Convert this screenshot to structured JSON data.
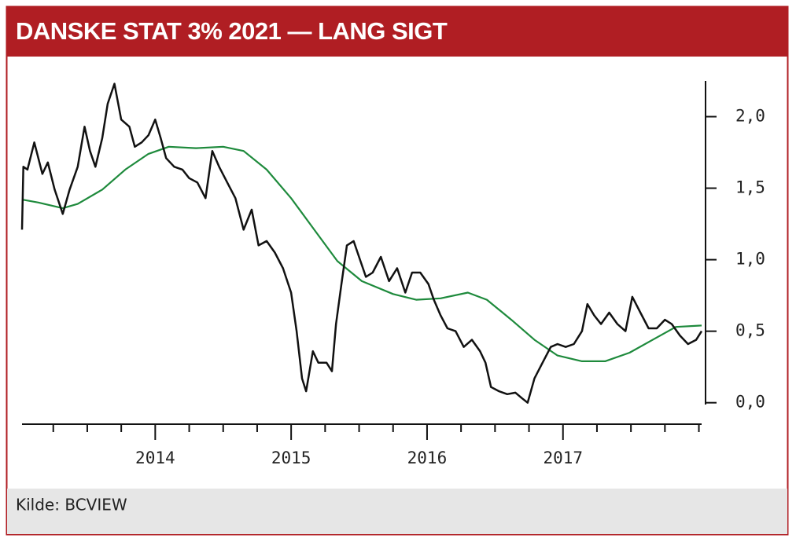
{
  "chart_data": {
    "type": "line",
    "title": "DANSKE STAT 3% 2021 — LANG SIGT",
    "source": "Kilde: BCVIEW",
    "xlim": [
      2013.02,
      2018.02
    ],
    "xticks": [
      2014,
      2015,
      2016,
      2017
    ],
    "xticks_minor": [
      2013.25,
      2013.5,
      2013.75,
      2014.25,
      2014.5,
      2014.75,
      2015.25,
      2015.5,
      2015.75,
      2016.25,
      2016.5,
      2016.75,
      2017.25,
      2017.5,
      2017.75,
      2018.0
    ],
    "ylim": [
      -0.15,
      2.25
    ],
    "yticks": [
      {
        "value": 0,
        "label": "0,0"
      },
      {
        "value": 0.5,
        "label": "0,5"
      },
      {
        "value": 1,
        "label": "1,0"
      },
      {
        "value": 1.5,
        "label": "1,5"
      },
      {
        "value": 2,
        "label": "2,0"
      }
    ],
    "series": [
      {
        "color": "#111111",
        "x": [
          2013.02,
          2013.03,
          2013.06,
          2013.11,
          2013.17,
          2013.21,
          2013.26,
          2013.32,
          2013.37,
          2013.43,
          2013.48,
          2013.52,
          2013.56,
          2013.61,
          2013.65,
          2013.7,
          2013.75,
          2013.81,
          2013.85,
          2013.9,
          2013.95,
          2014.0,
          2014.04,
          2014.08,
          2014.14,
          2014.2,
          2014.25,
          2014.31,
          2014.37,
          2014.42,
          2014.47,
          2014.53,
          2014.59,
          2014.65,
          2014.71,
          2014.76,
          2014.82,
          2014.88,
          2014.94,
          2015.0,
          2015.04,
          2015.08,
          2015.11,
          2015.16,
          2015.2,
          2015.26,
          2015.3,
          2015.33,
          2015.37,
          2015.41,
          2015.46,
          2015.51,
          2015.55,
          2015.6,
          2015.66,
          2015.72,
          2015.78,
          2015.84,
          2015.89,
          2015.95,
          2016.01,
          2016.05,
          2016.1,
          2016.15,
          2016.21,
          2016.27,
          2016.33,
          2016.39,
          2016.43,
          2016.47,
          2016.53,
          2016.59,
          2016.65,
          2016.7,
          2016.74,
          2016.79,
          2016.85,
          2016.91,
          2016.96,
          2017.02,
          2017.08,
          2017.14,
          2017.18,
          2017.23,
          2017.28,
          2017.34,
          2017.4,
          2017.46,
          2017.51,
          2017.57,
          2017.63,
          2017.69,
          2017.75,
          2017.8,
          2017.86,
          2017.92,
          2017.98,
          2018.02
        ],
        "values": [
          1.21,
          1.65,
          1.63,
          1.82,
          1.6,
          1.68,
          1.49,
          1.32,
          1.49,
          1.65,
          1.93,
          1.76,
          1.65,
          1.85,
          2.09,
          2.23,
          1.98,
          1.93,
          1.79,
          1.82,
          1.87,
          1.98,
          1.85,
          1.71,
          1.65,
          1.63,
          1.57,
          1.54,
          1.43,
          1.76,
          1.65,
          1.54,
          1.43,
          1.21,
          1.35,
          1.1,
          1.13,
          1.05,
          0.94,
          0.77,
          0.5,
          0.17,
          0.08,
          0.36,
          0.28,
          0.28,
          0.22,
          0.55,
          0.83,
          1.1,
          1.13,
          0.99,
          0.88,
          0.91,
          1.02,
          0.85,
          0.94,
          0.77,
          0.91,
          0.91,
          0.83,
          0.72,
          0.61,
          0.52,
          0.5,
          0.39,
          0.44,
          0.36,
          0.28,
          0.11,
          0.08,
          0.06,
          0.07,
          0.03,
          0.0,
          0.17,
          0.28,
          0.39,
          0.41,
          0.39,
          0.41,
          0.5,
          0.69,
          0.61,
          0.55,
          0.63,
          0.55,
          0.5,
          0.74,
          0.63,
          0.52,
          0.52,
          0.58,
          0.55,
          0.47,
          0.41,
          0.44,
          0.5
        ]
      },
      {
        "color": "#1e8a3c",
        "x": [
          2013.02,
          2013.14,
          2013.32,
          2013.43,
          2013.61,
          2013.78,
          2013.95,
          2014.1,
          2014.3,
          2014.5,
          2014.65,
          2014.82,
          2015.0,
          2015.17,
          2015.34,
          2015.52,
          2015.75,
          2015.92,
          2016.1,
          2016.3,
          2016.44,
          2016.62,
          2016.79,
          2016.96,
          2017.14,
          2017.31,
          2017.49,
          2017.66,
          2017.83,
          2018.02
        ],
        "values": [
          1.42,
          1.4,
          1.36,
          1.39,
          1.49,
          1.63,
          1.74,
          1.79,
          1.78,
          1.79,
          1.76,
          1.63,
          1.43,
          1.21,
          0.99,
          0.85,
          0.76,
          0.72,
          0.73,
          0.77,
          0.72,
          0.58,
          0.44,
          0.33,
          0.29,
          0.29,
          0.35,
          0.44,
          0.53,
          0.54
        ]
      }
    ]
  }
}
